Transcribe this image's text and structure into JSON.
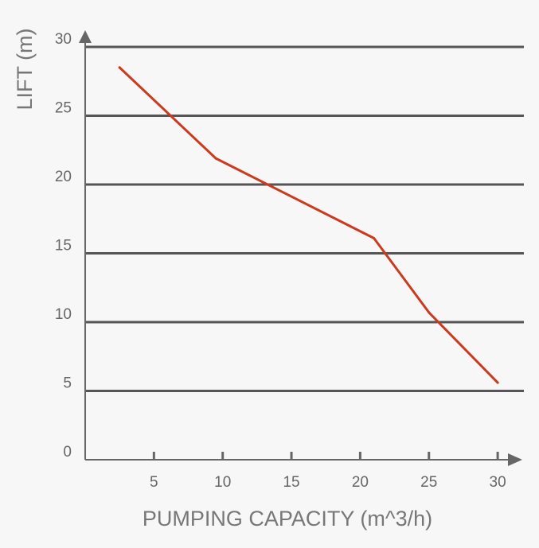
{
  "chart_data": {
    "type": "line",
    "title": "",
    "xlabel": "PUMPING CAPACITY (m^3/h)",
    "ylabel": "LIFT (m)",
    "xlim": [
      0,
      30
    ],
    "ylim": [
      0,
      30
    ],
    "x_ticks": [
      5,
      10,
      15,
      20,
      25,
      30
    ],
    "y_ticks": [
      0,
      5,
      10,
      15,
      20,
      25,
      30
    ],
    "grid": "horizontal",
    "series": [
      {
        "color": "#cc3a1e",
        "x": [
          2.5,
          9.5,
          21,
          25,
          30
        ],
        "y": [
          28.5,
          21.9,
          16.1,
          10.7,
          5.6
        ]
      }
    ],
    "colors": {
      "grid": "#555555",
      "axis": "#666666",
      "tick_text": "#666666",
      "title_text": "#777777",
      "line": "#cc3a1e"
    }
  }
}
